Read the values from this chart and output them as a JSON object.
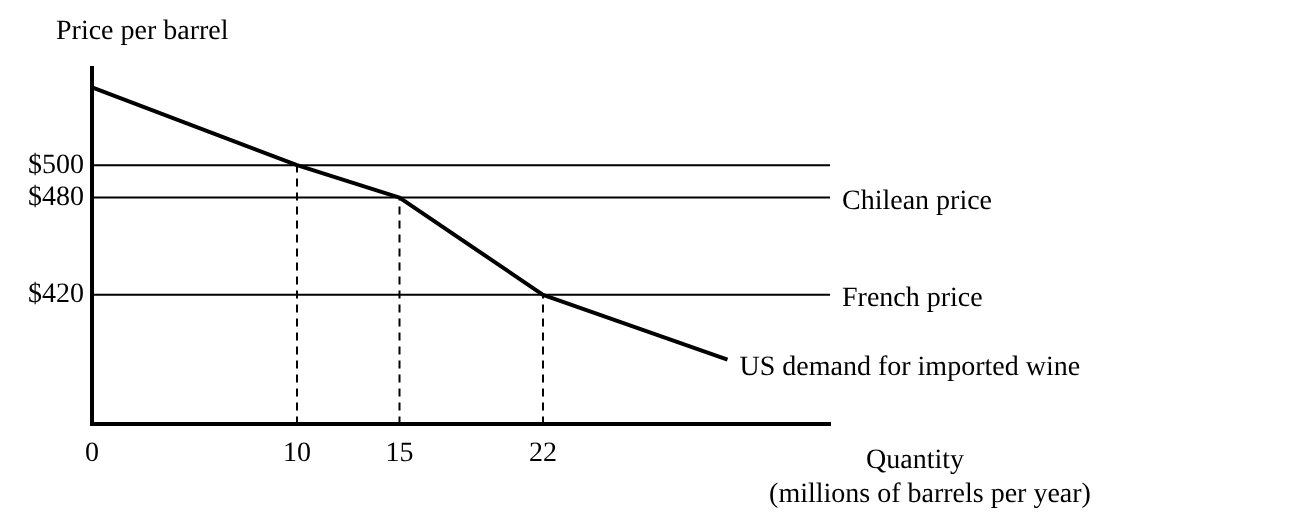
{
  "chart_data": {
    "type": "line",
    "ylabel": "Price per barrel",
    "xlabel": "Quantity\n(millions of barrels per year)",
    "xlim": [
      0,
      36
    ],
    "xticks": [
      0,
      10,
      15,
      22
    ],
    "ylim": [
      340,
      560
    ],
    "yticks": [
      {
        "value": 500,
        "label": "$500"
      },
      {
        "value": 480,
        "label": "$480"
      },
      {
        "value": 420,
        "label": "$420"
      }
    ],
    "series": [
      {
        "name": "US demand for imported wine",
        "color": "#000000",
        "x": [
          0,
          10,
          15,
          22,
          31
        ],
        "values": [
          548,
          500,
          480,
          420,
          380
        ]
      },
      {
        "color": "#000000",
        "line_style": "dashed",
        "x": [
          10,
          10
        ],
        "values": [
          340,
          500
        ]
      },
      {
        "color": "#000000",
        "line_style": "dashed",
        "x": [
          15,
          15
        ],
        "values": [
          340,
          480
        ]
      },
      {
        "color": "#000000",
        "line_style": "dashed",
        "x": [
          22,
          22
        ],
        "values": [
          340,
          420
        ]
      }
    ],
    "ref_lines": [
      {
        "axis": "y",
        "value": 500,
        "label": null,
        "color": "#000000"
      },
      {
        "axis": "y",
        "value": 480,
        "label": "Chilean price",
        "color": "#000000"
      },
      {
        "axis": "y",
        "value": 420,
        "label": "French price",
        "color": "#000000"
      }
    ],
    "grid": false,
    "legend": false,
    "marker": "none",
    "line_style": "solid"
  }
}
